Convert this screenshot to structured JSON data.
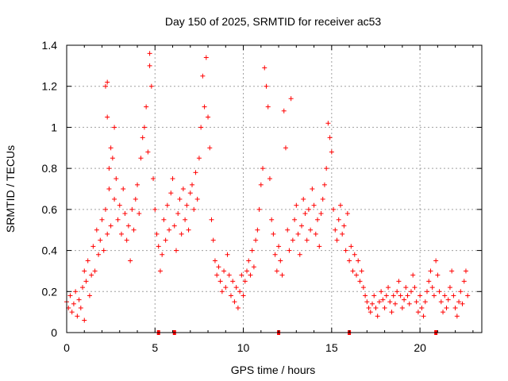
{
  "chart_data": {
    "type": "scatter",
    "title": "Day 150 of 2025, SRMTID for receiver ac53",
    "xlabel": "GPS time / hours",
    "ylabel": "SRMTID / TECUs",
    "xlim": [
      0,
      23.5
    ],
    "ylim": [
      0,
      1.4
    ],
    "xticks": [
      0,
      5,
      10,
      15,
      20
    ],
    "yticks": [
      0,
      0.2,
      0.4,
      0.6,
      0.8,
      1,
      1.2,
      1.4
    ],
    "grid": true,
    "marker": "+",
    "color": "#ff0000",
    "series": [
      {
        "name": "SRMTID",
        "points": [
          [
            0.0,
            0.15
          ],
          [
            0.1,
            0.12
          ],
          [
            0.2,
            0.18
          ],
          [
            0.3,
            0.1
          ],
          [
            0.4,
            0.14
          ],
          [
            0.5,
            0.2
          ],
          [
            0.6,
            0.08
          ],
          [
            0.7,
            0.16
          ],
          [
            0.8,
            0.12
          ],
          [
            0.9,
            0.22
          ],
          [
            1.0,
            0.3
          ],
          [
            1.0,
            0.06
          ],
          [
            1.1,
            0.25
          ],
          [
            1.2,
            0.35
          ],
          [
            1.3,
            0.18
          ],
          [
            1.4,
            0.28
          ],
          [
            1.5,
            0.42
          ],
          [
            1.6,
            0.3
          ],
          [
            1.7,
            0.5
          ],
          [
            1.8,
            0.38
          ],
          [
            1.9,
            0.45
          ],
          [
            2.0,
            0.55
          ],
          [
            2.1,
            0.4
          ],
          [
            2.2,
            0.6
          ],
          [
            2.3,
            0.48
          ],
          [
            2.4,
            0.7
          ],
          [
            2.5,
            0.52
          ],
          [
            2.3,
            1.05
          ],
          [
            2.2,
            1.2
          ],
          [
            2.3,
            1.22
          ],
          [
            2.4,
            0.8
          ],
          [
            2.5,
            0.9
          ],
          [
            2.6,
            0.85
          ],
          [
            2.7,
            1.0
          ],
          [
            2.7,
            0.65
          ],
          [
            2.8,
            0.75
          ],
          [
            2.9,
            0.55
          ],
          [
            3.0,
            0.62
          ],
          [
            3.1,
            0.48
          ],
          [
            3.2,
            0.7
          ],
          [
            3.3,
            0.58
          ],
          [
            3.4,
            0.45
          ],
          [
            3.5,
            0.52
          ],
          [
            3.6,
            0.35
          ],
          [
            3.7,
            0.6
          ],
          [
            3.8,
            0.5
          ],
          [
            3.9,
            0.65
          ],
          [
            4.0,
            0.72
          ],
          [
            4.1,
            0.58
          ],
          [
            4.2,
            0.85
          ],
          [
            4.3,
            0.95
          ],
          [
            4.4,
            1.0
          ],
          [
            4.5,
            1.1
          ],
          [
            4.6,
            0.88
          ],
          [
            4.7,
            1.36
          ],
          [
            4.7,
            1.3
          ],
          [
            4.8,
            1.2
          ],
          [
            4.9,
            0.75
          ],
          [
            5.0,
            0.6
          ],
          [
            5.1,
            0.48
          ],
          [
            5.2,
            0.42
          ],
          [
            5.3,
            0.3
          ],
          [
            5.4,
            0.38
          ],
          [
            5.5,
            0.55
          ],
          [
            5.6,
            0.45
          ],
          [
            5.7,
            0.62
          ],
          [
            5.8,
            0.5
          ],
          [
            5.9,
            0.68
          ],
          [
            6.0,
            0.75
          ],
          [
            6.1,
            0.52
          ],
          [
            6.2,
            0.4
          ],
          [
            6.3,
            0.58
          ],
          [
            6.4,
            0.65
          ],
          [
            6.5,
            0.48
          ],
          [
            6.6,
            0.7
          ],
          [
            6.7,
            0.55
          ],
          [
            6.8,
            0.62
          ],
          [
            6.9,
            0.5
          ],
          [
            7.0,
            0.68
          ],
          [
            7.1,
            0.72
          ],
          [
            7.2,
            0.6
          ],
          [
            7.3,
            0.78
          ],
          [
            7.4,
            0.65
          ],
          [
            7.5,
            0.85
          ],
          [
            7.6,
            1.0
          ],
          [
            7.7,
            1.25
          ],
          [
            7.8,
            1.1
          ],
          [
            7.9,
            1.34
          ],
          [
            8.0,
            1.05
          ],
          [
            8.1,
            0.9
          ],
          [
            8.2,
            0.55
          ],
          [
            8.3,
            0.45
          ],
          [
            8.4,
            0.35
          ],
          [
            8.5,
            0.28
          ],
          [
            8.6,
            0.32
          ],
          [
            8.7,
            0.25
          ],
          [
            8.8,
            0.2
          ],
          [
            8.9,
            0.3
          ],
          [
            9.0,
            0.22
          ],
          [
            9.1,
            0.38
          ],
          [
            9.2,
            0.28
          ],
          [
            9.3,
            0.18
          ],
          [
            9.4,
            0.25
          ],
          [
            9.5,
            0.15
          ],
          [
            9.6,
            0.22
          ],
          [
            9.7,
            0.12
          ],
          [
            9.8,
            0.2
          ],
          [
            9.9,
            0.28
          ],
          [
            10.0,
            0.18
          ],
          [
            10.1,
            0.25
          ],
          [
            10.2,
            0.3
          ],
          [
            10.3,
            0.35
          ],
          [
            10.4,
            0.28
          ],
          [
            10.5,
            0.4
          ],
          [
            10.6,
            0.32
          ],
          [
            10.7,
            0.45
          ],
          [
            10.8,
            0.5
          ],
          [
            10.9,
            0.6
          ],
          [
            11.0,
            0.72
          ],
          [
            11.1,
            0.8
          ],
          [
            11.2,
            1.29
          ],
          [
            11.3,
            1.2
          ],
          [
            11.4,
            1.1
          ],
          [
            11.5,
            0.75
          ],
          [
            11.6,
            0.55
          ],
          [
            11.7,
            0.48
          ],
          [
            11.8,
            0.38
          ],
          [
            11.9,
            0.3
          ],
          [
            12.0,
            0.42
          ],
          [
            12.1,
            0.35
          ],
          [
            12.2,
            0.28
          ],
          [
            12.3,
            1.08
          ],
          [
            12.4,
            0.9
          ],
          [
            12.5,
            0.5
          ],
          [
            12.6,
            0.4
          ],
          [
            12.7,
            1.14
          ],
          [
            12.8,
            0.45
          ],
          [
            12.9,
            0.55
          ],
          [
            13.0,
            0.62
          ],
          [
            13.1,
            0.48
          ],
          [
            13.2,
            0.38
          ],
          [
            13.3,
            0.52
          ],
          [
            13.4,
            0.65
          ],
          [
            13.5,
            0.58
          ],
          [
            13.6,
            0.45
          ],
          [
            13.7,
            0.6
          ],
          [
            13.8,
            0.5
          ],
          [
            13.9,
            0.7
          ],
          [
            14.0,
            0.62
          ],
          [
            14.1,
            0.48
          ],
          [
            14.2,
            0.55
          ],
          [
            14.3,
            0.42
          ],
          [
            14.4,
            0.58
          ],
          [
            14.5,
            0.65
          ],
          [
            14.6,
            0.72
          ],
          [
            14.7,
            0.8
          ],
          [
            14.8,
            1.02
          ],
          [
            14.9,
            0.95
          ],
          [
            15.0,
            0.88
          ],
          [
            15.1,
            0.6
          ],
          [
            15.2,
            0.5
          ],
          [
            15.3,
            0.45
          ],
          [
            15.4,
            0.55
          ],
          [
            15.5,
            0.62
          ],
          [
            15.6,
            0.48
          ],
          [
            15.7,
            0.52
          ],
          [
            15.8,
            0.4
          ],
          [
            15.9,
            0.58
          ],
          [
            16.0,
            0.35
          ],
          [
            16.1,
            0.42
          ],
          [
            16.2,
            0.3
          ],
          [
            16.3,
            0.38
          ],
          [
            16.4,
            0.28
          ],
          [
            16.5,
            0.35
          ],
          [
            16.6,
            0.25
          ],
          [
            16.7,
            0.3
          ],
          [
            16.8,
            0.22
          ],
          [
            16.9,
            0.18
          ],
          [
            17.0,
            0.15
          ],
          [
            17.1,
            0.12
          ],
          [
            17.2,
            0.1
          ],
          [
            17.3,
            0.14
          ],
          [
            17.4,
            0.18
          ],
          [
            17.5,
            0.12
          ],
          [
            17.6,
            0.08
          ],
          [
            17.7,
            0.15
          ],
          [
            17.8,
            0.2
          ],
          [
            17.9,
            0.16
          ],
          [
            18.0,
            0.12
          ],
          [
            18.1,
            0.18
          ],
          [
            18.2,
            0.22
          ],
          [
            18.3,
            0.15
          ],
          [
            18.4,
            0.1
          ],
          [
            18.5,
            0.18
          ],
          [
            18.6,
            0.14
          ],
          [
            18.7,
            0.2
          ],
          [
            18.8,
            0.25
          ],
          [
            18.9,
            0.18
          ],
          [
            19.0,
            0.12
          ],
          [
            19.1,
            0.16
          ],
          [
            19.2,
            0.22
          ],
          [
            19.3,
            0.18
          ],
          [
            19.4,
            0.14
          ],
          [
            19.5,
            0.2
          ],
          [
            19.6,
            0.28
          ],
          [
            19.7,
            0.22
          ],
          [
            19.8,
            0.15
          ],
          [
            19.9,
            0.1
          ],
          [
            20.0,
            0.18
          ],
          [
            20.1,
            0.12
          ],
          [
            20.2,
            0.08
          ],
          [
            20.3,
            0.15
          ],
          [
            20.4,
            0.2
          ],
          [
            20.5,
            0.25
          ],
          [
            20.6,
            0.3
          ],
          [
            20.7,
            0.22
          ],
          [
            20.8,
            0.18
          ],
          [
            20.9,
            0.35
          ],
          [
            21.0,
            0.28
          ],
          [
            21.1,
            0.2
          ],
          [
            21.2,
            0.15
          ],
          [
            21.3,
            0.1
          ],
          [
            21.4,
            0.18
          ],
          [
            21.5,
            0.12
          ],
          [
            21.6,
            0.16
          ],
          [
            21.7,
            0.22
          ],
          [
            21.8,
            0.3
          ],
          [
            21.9,
            0.18
          ],
          [
            22.0,
            0.12
          ],
          [
            22.1,
            0.08
          ],
          [
            22.2,
            0.15
          ],
          [
            22.3,
            0.2
          ],
          [
            22.4,
            0.14
          ],
          [
            22.5,
            0.25
          ],
          [
            22.6,
            0.3
          ],
          [
            22.7,
            0.18
          ]
        ]
      }
    ],
    "gap_markers_x": [
      5.2,
      6.1,
      12.0,
      16.0,
      20.9
    ]
  }
}
